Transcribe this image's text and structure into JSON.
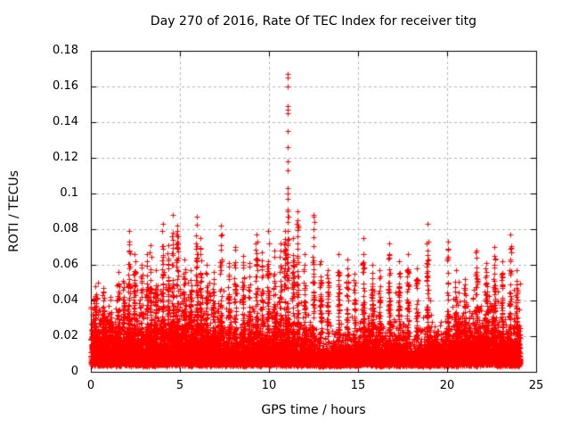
{
  "window": {
    "background": "#ffffff"
  },
  "chart_data": {
    "type": "scatter",
    "title": "Day 270 of 2016, Rate Of TEC Index for receiver titg",
    "xlabel": "GPS time / hours",
    "ylabel": "ROTI / TECUs",
    "xlim": [
      0,
      25
    ],
    "ylim": [
      0,
      0.18
    ],
    "xtick_values": [
      0,
      5,
      10,
      15,
      20,
      25
    ],
    "xtick_labels": [
      "0",
      "5",
      "10",
      "15",
      "20",
      "25"
    ],
    "ytick_values": [
      0,
      0.02,
      0.04,
      0.06,
      0.08,
      0.1,
      0.12,
      0.14,
      0.16,
      0.18
    ],
    "ytick_labels": [
      "0",
      "0.02",
      "0.04",
      "0.06",
      "0.08",
      "0.1",
      "0.12",
      "0.14",
      "0.16",
      "0.18"
    ],
    "grid": true,
    "legend": null,
    "colors": {
      "marker": "#ff0000",
      "grid": "#b3b3b3",
      "axis": "#000000",
      "text": "#000000",
      "background": "#ffffff"
    },
    "marker": {
      "shape": "plus",
      "size": 7
    },
    "series_name": "ROTI",
    "data_x_range": [
      0,
      24.1
    ],
    "baseline": {
      "seed": 42,
      "n_points": 15000,
      "v_min": 0.003,
      "exp_mean": 0.0062,
      "cap": 0.052,
      "mod": [
        [
          0.3,
          24,
          0.8
        ],
        [
          0.2,
          5.3,
          1.7
        ],
        [
          0.12,
          1.7,
          0.3
        ]
      ]
    },
    "spike_shape": {
      "x_sigma": 0.045,
      "v_base": 0.022,
      "density_pow": 1.6,
      "pts_base": 16,
      "pts_per_peak": 380
    },
    "spikes": [
      [
        0.25,
        0.048
      ],
      [
        0.7,
        0.047
      ],
      [
        1.1,
        0.042
      ],
      [
        1.55,
        0.056
      ],
      [
        1.85,
        0.05
      ],
      [
        2.15,
        0.079
      ],
      [
        2.45,
        0.066
      ],
      [
        2.85,
        0.06
      ],
      [
        3.15,
        0.066
      ],
      [
        3.35,
        0.071
      ],
      [
        3.65,
        0.057
      ],
      [
        4.05,
        0.083
      ],
      [
        4.35,
        0.071
      ],
      [
        4.6,
        0.088
      ],
      [
        4.85,
        0.082
      ],
      [
        5.25,
        0.063
      ],
      [
        5.6,
        0.057
      ],
      [
        5.95,
        0.087
      ],
      [
        6.15,
        0.075
      ],
      [
        6.5,
        0.06
      ],
      [
        6.9,
        0.056
      ],
      [
        7.3,
        0.082
      ],
      [
        7.75,
        0.061
      ],
      [
        8.1,
        0.07
      ],
      [
        8.55,
        0.065
      ],
      [
        8.9,
        0.061
      ],
      [
        9.3,
        0.077
      ],
      [
        9.6,
        0.067
      ],
      [
        9.95,
        0.079
      ],
      [
        10.3,
        0.068
      ],
      [
        10.65,
        0.072
      ],
      [
        10.9,
        0.079
      ],
      [
        11.05,
        0.09
      ],
      [
        11.35,
        0.075
      ],
      [
        11.6,
        0.09
      ],
      [
        12.0,
        0.066
      ],
      [
        12.5,
        0.088
      ],
      [
        12.9,
        0.062
      ],
      [
        13.3,
        0.057
      ],
      [
        13.9,
        0.066
      ],
      [
        14.4,
        0.063
      ],
      [
        14.8,
        0.055
      ],
      [
        15.3,
        0.075
      ],
      [
        15.8,
        0.06
      ],
      [
        16.2,
        0.057
      ],
      [
        16.75,
        0.072
      ],
      [
        17.3,
        0.062
      ],
      [
        17.8,
        0.066
      ],
      [
        18.3,
        0.058
      ],
      [
        18.9,
        0.083
      ],
      [
        20.05,
        0.073
      ],
      [
        20.5,
        0.057
      ],
      [
        21.0,
        0.052
      ],
      [
        21.65,
        0.068
      ],
      [
        22.2,
        0.061
      ],
      [
        22.65,
        0.07
      ],
      [
        23.1,
        0.062
      ],
      [
        23.55,
        0.077
      ],
      [
        23.9,
        0.057
      ]
    ],
    "outliers": [
      [
        11.05,
        0.167
      ],
      [
        11.06,
        0.165
      ],
      [
        11.05,
        0.16
      ],
      [
        11.06,
        0.149
      ],
      [
        11.05,
        0.147
      ],
      [
        11.06,
        0.145
      ],
      [
        11.05,
        0.135
      ],
      [
        11.06,
        0.126
      ],
      [
        11.05,
        0.118
      ],
      [
        11.05,
        0.113
      ],
      [
        11.06,
        0.103
      ],
      [
        11.05,
        0.1
      ],
      [
        11.05,
        0.097
      ],
      [
        11.06,
        0.091
      ],
      [
        11.05,
        0.087
      ],
      [
        11.06,
        0.084
      ]
    ]
  }
}
